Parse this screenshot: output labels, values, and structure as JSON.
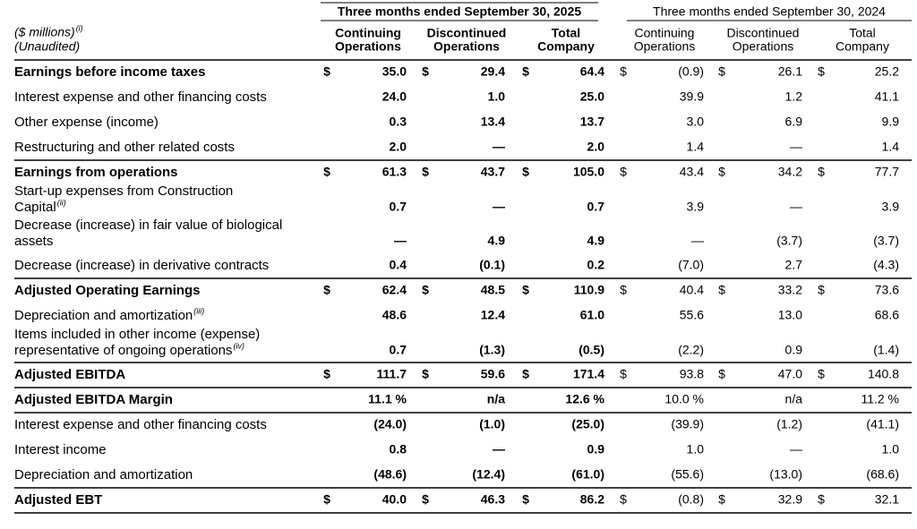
{
  "header": {
    "unit": "($ millions)",
    "unit_note": "(i)",
    "unaudited": "(Unaudited)",
    "periods": [
      "Three months ended September 30, 2025",
      "Three months ended September 30, 2024"
    ],
    "columns": [
      [
        "Continuing",
        "Operations"
      ],
      [
        "Discontinued",
        "Operations"
      ],
      [
        "Total",
        "Company"
      ],
      [
        "Continuing",
        "Operations"
      ],
      [
        "Discontinued",
        "Operations"
      ],
      [
        "Total",
        "Company"
      ]
    ]
  },
  "currency": "$",
  "rows": [
    {
      "label": [
        "Earnings before income taxes"
      ],
      "bold": true,
      "dollar": true,
      "cells": [
        "35.0",
        "29.4",
        "64.4",
        "(0.9)",
        "26.1",
        "25.2"
      ]
    },
    {
      "label": [
        "Interest expense and other financing costs"
      ],
      "cells": [
        "24.0",
        "1.0",
        "25.0",
        "39.9",
        "1.2",
        "41.1"
      ]
    },
    {
      "label": [
        "Other expense (income)"
      ],
      "cells": [
        "0.3",
        "13.4",
        "13.7",
        "3.0",
        "6.9",
        "9.9"
      ]
    },
    {
      "label": [
        "Restructuring and other related costs"
      ],
      "cells": [
        "2.0",
        "—",
        "2.0",
        "1.4",
        "—",
        "1.4"
      ]
    },
    {
      "label": [
        "Earnings from operations"
      ],
      "bold": true,
      "dollar": true,
      "cells": [
        "61.3",
        "43.7",
        "105.0",
        "43.4",
        "34.2",
        "77.7"
      ]
    },
    {
      "label": [
        "Start-up expenses from Construction",
        "Capital"
      ],
      "note": "(ii)",
      "cells": [
        "0.7",
        "—",
        "0.7",
        "3.9",
        "—",
        "3.9"
      ]
    },
    {
      "label": [
        "Decrease (increase) in fair value of biological",
        "assets"
      ],
      "cells": [
        "—",
        "4.9",
        "4.9",
        "—",
        "(3.7)",
        "(3.7)"
      ]
    },
    {
      "label": [
        "Decrease (increase) in derivative contracts"
      ],
      "cells": [
        "0.4",
        "(0.1)",
        "0.2",
        "(7.0)",
        "2.7",
        "(4.3)"
      ]
    },
    {
      "label": [
        "Adjusted Operating Earnings"
      ],
      "bold": true,
      "dollar": true,
      "cells": [
        "62.4",
        "48.5",
        "110.9",
        "40.4",
        "33.2",
        "73.6"
      ]
    },
    {
      "label": [
        "Depreciation and amortization"
      ],
      "note": "(iii)",
      "cells": [
        "48.6",
        "12.4",
        "61.0",
        "55.6",
        "13.0",
        "68.6"
      ]
    },
    {
      "label": [
        "Items included in other income (expense)",
        "representative of ongoing operations"
      ],
      "note": "(iv)",
      "cells": [
        "0.7",
        "(1.3)",
        "(0.5)",
        "(2.2)",
        "0.9",
        "(1.4)"
      ]
    },
    {
      "label": [
        "Adjusted EBITDA"
      ],
      "bold": true,
      "dollar": true,
      "cells": [
        "111.7",
        "59.6",
        "171.4",
        "93.8",
        "47.0",
        "140.8"
      ]
    },
    {
      "label": [
        "Adjusted EBITDA Margin"
      ],
      "bold": true,
      "cells": [
        "11.1 %",
        "n/a",
        "12.6 %",
        "10.0 %",
        "n/a",
        "11.2 %"
      ]
    },
    {
      "label": [
        "Interest expense and other financing costs"
      ],
      "cells": [
        "(24.0)",
        "(1.0)",
        "(25.0)",
        "(39.9)",
        "(1.2)",
        "(41.1)"
      ]
    },
    {
      "label": [
        "Interest income"
      ],
      "cells": [
        "0.8",
        "—",
        "0.9",
        "1.0",
        "—",
        "1.0"
      ]
    },
    {
      "label": [
        "Depreciation and amortization"
      ],
      "cells": [
        "(48.6)",
        "(12.4)",
        "(61.0)",
        "(55.6)",
        "(13.0)",
        "(68.6)"
      ]
    },
    {
      "label": [
        "Adjusted EBT"
      ],
      "bold": true,
      "dollar": true,
      "cells": [
        "40.0",
        "46.3",
        "86.2",
        "(0.8)",
        "32.9",
        "32.1"
      ]
    }
  ]
}
